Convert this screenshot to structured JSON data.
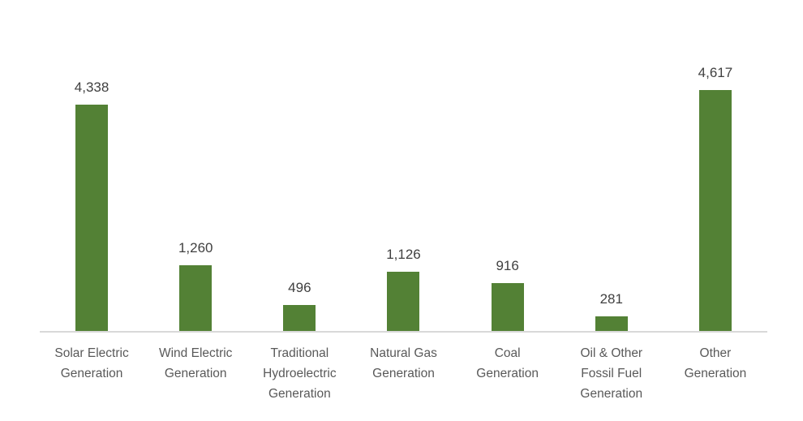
{
  "page": {
    "background_color": "#ffffff"
  },
  "chart_data": {
    "type": "bar",
    "title": "",
    "xlabel": "",
    "ylabel": "",
    "ylim": [
      0,
      5000
    ],
    "grid": false,
    "legend": "none",
    "orientation": "vertical",
    "bar_color": "#538135",
    "axis_line_color": "#d9d9d9",
    "value_label_color": "#404040",
    "tick_label_color": "#595959",
    "categories": [
      "Solar Electric Generation",
      "Wind Electric Generation",
      "Traditional Hydroelectric Generation",
      "Natural Gas Generation",
      "Coal Generation",
      "Oil & Other Fossil Fuel Generation",
      "Other Generation"
    ],
    "tick_label_lines": [
      [
        "Solar Electric",
        "Generation"
      ],
      [
        "Wind Electric",
        "Generation"
      ],
      [
        "Traditional",
        "Hydroelectric",
        "Generation"
      ],
      [
        "Natural Gas",
        "Generation"
      ],
      [
        "Coal",
        "Generation"
      ],
      [
        "Oil & Other",
        "Fossil Fuel",
        "Generation"
      ],
      [
        "Other",
        "Generation"
      ]
    ],
    "values": [
      4338,
      1260,
      496,
      1126,
      916,
      281,
      4617
    ],
    "value_labels": [
      "4,338",
      "1,260",
      "496",
      "1,126",
      "916",
      "281",
      "4,617"
    ]
  }
}
